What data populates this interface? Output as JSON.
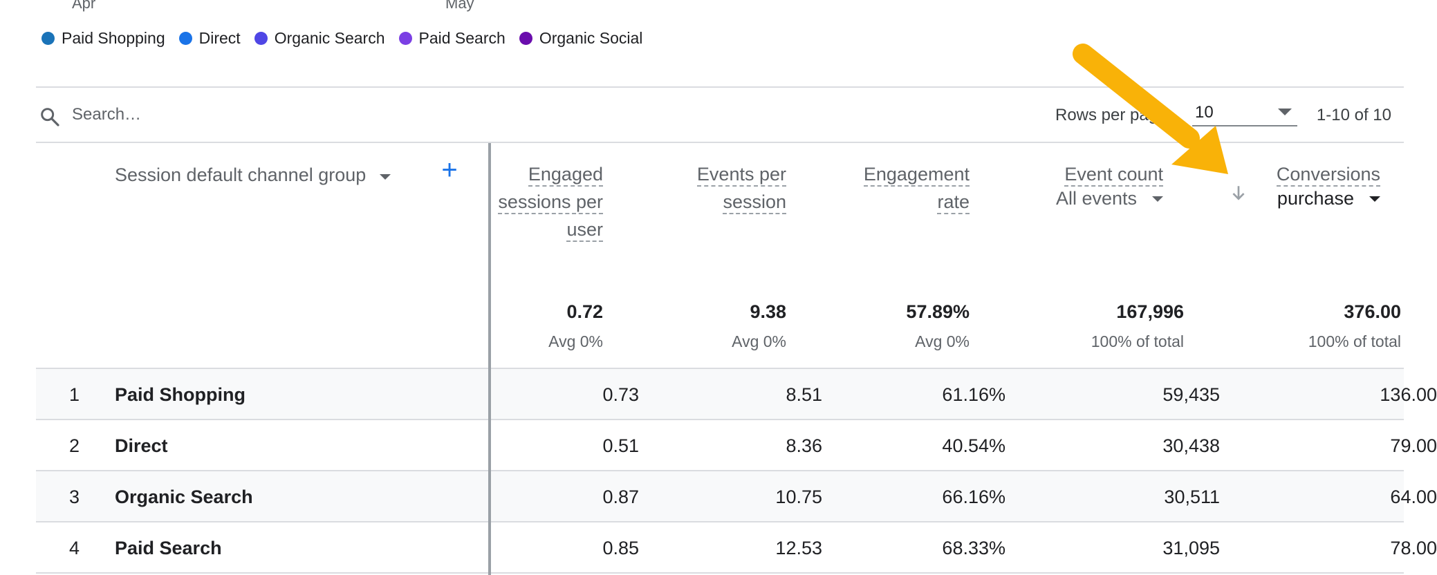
{
  "chart_axis": {
    "labels": [
      "Apr",
      "May"
    ]
  },
  "legend": {
    "items": [
      {
        "label": "Paid Shopping",
        "color": "#1a73b8"
      },
      {
        "label": "Direct",
        "color": "#1a73e8"
      },
      {
        "label": "Organic Search",
        "color": "#4f46e5"
      },
      {
        "label": "Paid Search",
        "color": "#7b3fe4"
      },
      {
        "label": "Organic Social",
        "color": "#6a0dad"
      }
    ]
  },
  "toolbar": {
    "search_placeholder": "Search…",
    "rows_per_page_label": "Rows per page:",
    "rows_per_page_value": "10",
    "pagination_text": "1-10 of 10"
  },
  "table": {
    "dimension_header": "Session default channel group",
    "add_dimension_label": "+",
    "metrics": [
      {
        "title_lines": [
          "Engaged",
          "sessions per",
          "user"
        ],
        "sub": ""
      },
      {
        "title_lines": [
          "Events per",
          "session"
        ],
        "sub": ""
      },
      {
        "title_lines": [
          "Engagement",
          "rate"
        ],
        "sub": ""
      },
      {
        "title_lines": [
          "Event count"
        ],
        "sub": "All events"
      },
      {
        "title_lines": [
          "Conversions"
        ],
        "sub": "purchase"
      }
    ],
    "totals": [
      {
        "value": "0.72",
        "sub": "Avg 0%"
      },
      {
        "value": "9.38",
        "sub": "Avg 0%"
      },
      {
        "value": "57.89%",
        "sub": "Avg 0%"
      },
      {
        "value": "167,996",
        "sub": "100% of total"
      },
      {
        "value": "376.00",
        "sub": "100% of total"
      }
    ],
    "rows": [
      {
        "index": "1",
        "channel": "Paid Shopping",
        "values": [
          "0.73",
          "8.51",
          "61.16%",
          "59,435",
          "136.00"
        ]
      },
      {
        "index": "2",
        "channel": "Direct",
        "values": [
          "0.51",
          "8.36",
          "40.54%",
          "30,438",
          "79.00"
        ]
      },
      {
        "index": "3",
        "channel": "Organic Search",
        "values": [
          "0.87",
          "10.75",
          "66.16%",
          "30,511",
          "64.00"
        ]
      },
      {
        "index": "4",
        "channel": "Paid Search",
        "values": [
          "0.85",
          "12.53",
          "68.33%",
          "31,095",
          "78.00"
        ]
      }
    ]
  },
  "colors": {
    "accent": "#1a73e8",
    "annotation_arrow": "#fbbc04"
  }
}
